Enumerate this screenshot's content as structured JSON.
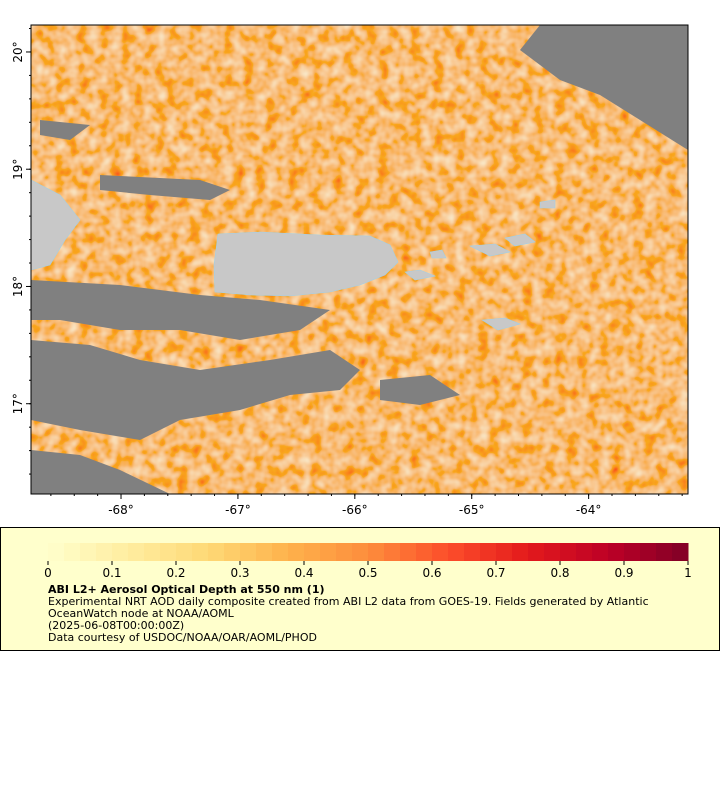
{
  "map": {
    "xlim": [
      -68.77,
      -63.15
    ],
    "ylim": [
      16.23,
      20.23
    ],
    "xticks": [
      {
        "value": -68,
        "label": "-68°"
      },
      {
        "value": -67,
        "label": "-67°"
      },
      {
        "value": -66,
        "label": "-66°"
      },
      {
        "value": -65,
        "label": "-65°"
      },
      {
        "value": -64,
        "label": "-64°"
      }
    ],
    "yticks": [
      {
        "value": 17,
        "label": "17°"
      },
      {
        "value": 18,
        "label": "18°"
      },
      {
        "value": 19,
        "label": "19°"
      },
      {
        "value": 20,
        "label": "20°"
      }
    ]
  },
  "colorbar": {
    "range": [
      0,
      1
    ],
    "ticks": [
      0,
      0.1,
      0.2,
      0.3,
      0.4,
      0.5,
      0.6,
      0.7,
      0.8,
      0.9,
      1
    ]
  },
  "legend": {
    "title": "ABI L2+ Aerosol Optical Depth at 550 nm (1)",
    "lines": [
      "Experimental NRT AOD daily composite created from ABI L2 data from GOES-19. Fields generated by Atlantic",
      "OceanWatch node at NOAA/AOML",
      "(2025-06-08T00:00:00Z)",
      "Data courtesy of USDOC/NOAA/OAR/AOML/PHOD"
    ]
  }
}
